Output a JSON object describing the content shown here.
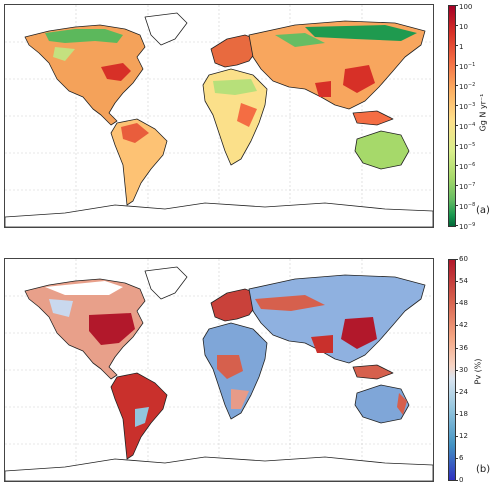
{
  "panel_a": {
    "colorbar_title": "Gg N yr⁻¹",
    "ticks": [
      {
        "base": "100",
        "exp": ""
      },
      {
        "base": "10",
        "exp": ""
      },
      {
        "base": "1",
        "exp": ""
      },
      {
        "base": "10",
        "exp": "−1"
      },
      {
        "base": "10",
        "exp": "−2"
      },
      {
        "base": "10",
        "exp": "−3"
      },
      {
        "base": "10",
        "exp": "−4"
      },
      {
        "base": "10",
        "exp": "−5"
      },
      {
        "base": "10",
        "exp": "−6"
      },
      {
        "base": "10",
        "exp": "−7"
      },
      {
        "base": "10",
        "exp": "−8"
      },
      {
        "base": "10",
        "exp": "−9"
      }
    ],
    "label": "(a)",
    "colormap": [
      "#a50026",
      "#d73027",
      "#f46d43",
      "#fdae61",
      "#fee08b",
      "#d9ef8b",
      "#a6d96a",
      "#66bd63",
      "#1a9850",
      "#006837"
    ]
  },
  "panel_b": {
    "colorbar_title": "Pv (%)",
    "ticks": [
      "60",
      "54",
      "48",
      "42",
      "36",
      "30",
      "24",
      "18",
      "12",
      "6",
      "0"
    ],
    "label": "(b)",
    "colormap": [
      "#b2182b",
      "#d6604d",
      "#f4a582",
      "#d8e4f0",
      "#92c5de",
      "#4393c3",
      "#3030c0"
    ]
  }
}
